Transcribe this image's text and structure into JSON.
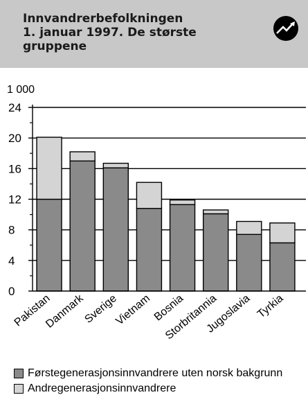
{
  "header": {
    "title_lines": [
      "Innvandrerbefolkningen",
      "1. januar 1997.  De største",
      "gruppene"
    ],
    "logo_icon": "trend-arrow-icon"
  },
  "chart_data": {
    "type": "bar",
    "stacked": true,
    "unit_label": "1 000",
    "categories": [
      "Pakistan",
      "Danmark",
      "Sverige",
      "Vietnam",
      "Bosnia",
      "Storbritannia",
      "Jugoslavia",
      "Tyrkia"
    ],
    "series": [
      {
        "name": "Førstegenerasjonsinnvandrere uten norsk bakgrunn",
        "color": "#8a8a8a",
        "values": [
          12.0,
          17.0,
          16.1,
          10.8,
          11.3,
          10.1,
          7.4,
          6.3
        ]
      },
      {
        "name": "Andregenerasjonsinnvandrere",
        "color": "#d4d4d4",
        "values": [
          8.1,
          1.2,
          0.6,
          3.4,
          0.6,
          0.5,
          1.7,
          2.6
        ]
      }
    ],
    "ylim": [
      0,
      24
    ],
    "yticks": [
      0,
      4,
      8,
      12,
      16,
      20,
      24
    ],
    "ytick_labels": [
      "0",
      "4",
      "8",
      "12",
      "16",
      "20",
      "24"
    ],
    "grid": true,
    "legend_position": "bottom"
  }
}
